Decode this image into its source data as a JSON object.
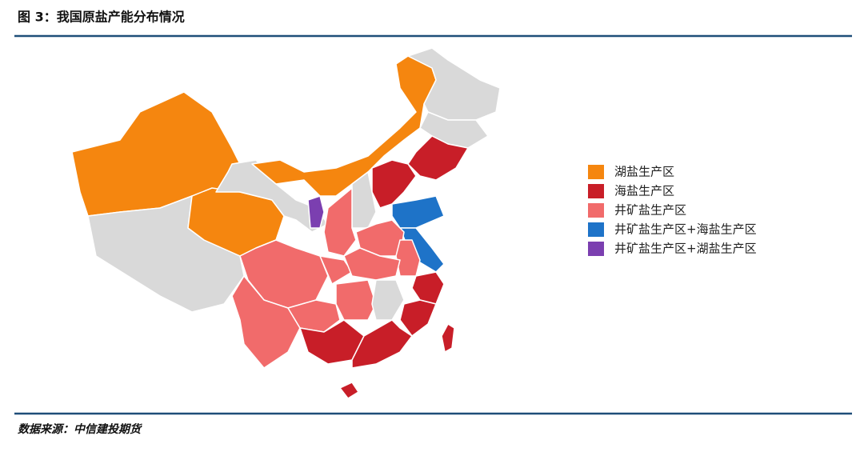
{
  "title": "图 3：我国原盐产能分布情况",
  "legend": [
    {
      "label": "湖盐生产区",
      "color": "#f5860f"
    },
    {
      "label": "海盐生产区",
      "color": "#c81e28"
    },
    {
      "label": "井矿盐生产区",
      "color": "#f16b6b"
    },
    {
      "label": "井矿盐生产区+海盐生产区",
      "color": "#1e73c8"
    },
    {
      "label": "井矿盐生产区+湖盐生产区",
      "color": "#7b3fb0"
    }
  ],
  "source": "数据来源：中信建投期货"
}
